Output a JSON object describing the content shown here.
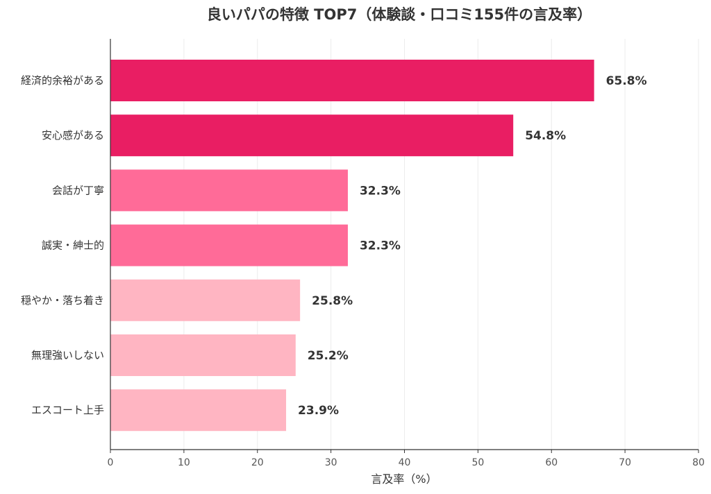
{
  "chart_data": {
    "type": "bar",
    "orientation": "horizontal",
    "title": "良いパパの特徴 TOP7（体験談・口コミ155件の言及率）",
    "xlabel": "言及率（%）",
    "ylabel": "",
    "xlim": [
      0,
      80
    ],
    "xticks": [
      0,
      10,
      20,
      30,
      40,
      50,
      60,
      70,
      80
    ],
    "grid": "vertical",
    "legend": "none",
    "categories": [
      "経済的余裕がある",
      "安心感がある",
      "会話が丁寧",
      "誠実・紳士的",
      "穏やか・落ち着き",
      "無理強いしない",
      "エスコート上手"
    ],
    "values": [
      65.8,
      54.8,
      32.3,
      32.3,
      25.8,
      25.2,
      23.9
    ],
    "value_labels": [
      "65.8%",
      "54.8%",
      "32.3%",
      "32.3%",
      "25.8%",
      "25.2%",
      "23.9%"
    ],
    "colors": [
      "#e91e63",
      "#e91e63",
      "#ff6b98",
      "#ff6b98",
      "#ffb5c2",
      "#ffb5c2",
      "#ffb5c2"
    ]
  }
}
